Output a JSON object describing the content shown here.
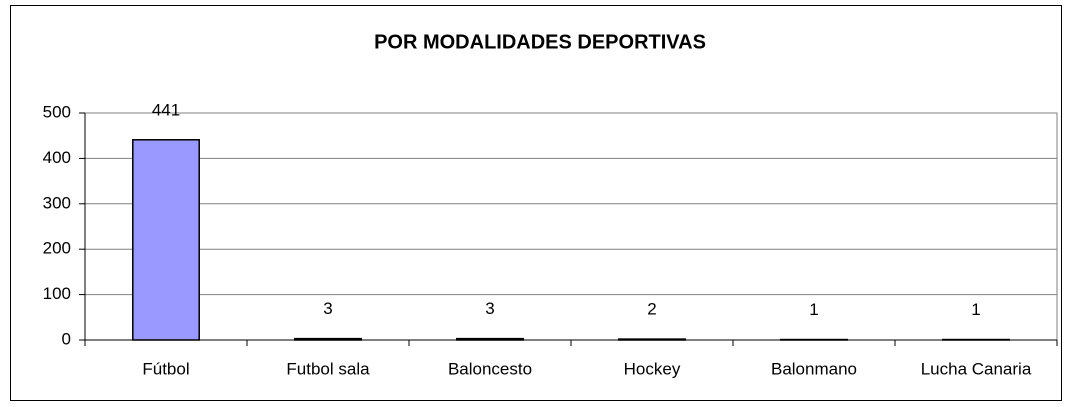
{
  "chart_data": {
    "type": "bar",
    "title": "POR MODALIDADES DEPORTIVAS",
    "categories": [
      "Fútbol",
      "Futbol sala",
      "Baloncesto",
      "Hockey",
      "Balonmano",
      "Lucha Canaria"
    ],
    "values": [
      441,
      3,
      3,
      2,
      1,
      1
    ],
    "color": "#9999ff",
    "ylim": [
      0,
      500
    ],
    "yticks": [
      0,
      100,
      200,
      300,
      400,
      500
    ],
    "grid": true
  }
}
